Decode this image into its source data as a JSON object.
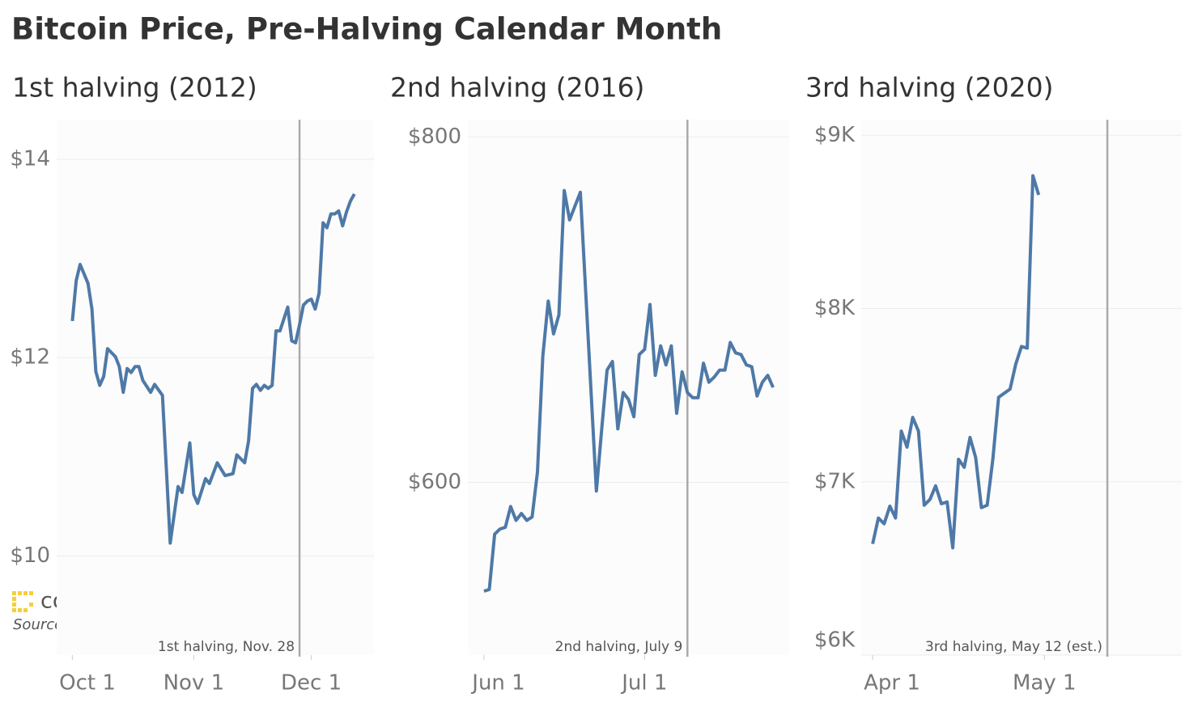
{
  "title": "Bitcoin Price, Pre-Halving Calendar Month",
  "logo": "coindesk",
  "source": "Source: Coin Metrics",
  "chart_data": [
    {
      "type": "line",
      "title": "1st halving (2012)",
      "color": "#4e79a7",
      "grid": true,
      "x": [
        "Oct 1",
        "Oct 2",
        "Oct 3",
        "Oct 5",
        "Oct 6",
        "Oct 7",
        "Oct 8",
        "Oct 9",
        "Oct 10",
        "Oct 12",
        "Oct 13",
        "Oct 14",
        "Oct 15",
        "Oct 16",
        "Oct 17",
        "Oct 18",
        "Oct 19",
        "Oct 21",
        "Oct 22",
        "Oct 24",
        "Oct 25",
        "Oct 26",
        "Oct 28",
        "Oct 29",
        "Oct 31",
        "Nov 1",
        "Nov 2",
        "Nov 4",
        "Nov 5",
        "Nov 7",
        "Nov 9",
        "Nov 11",
        "Nov 12",
        "Nov 14",
        "Nov 15",
        "Nov 16",
        "Nov 17",
        "Nov 18",
        "Nov 19",
        "Nov 20",
        "Nov 21",
        "Nov 22",
        "Nov 23",
        "Nov 25",
        "Nov 26",
        "Nov 27",
        "Nov 28",
        "Nov 29",
        "Nov 30",
        "Dec 1",
        "Dec 2",
        "Dec 3",
        "Dec 4",
        "Dec 5",
        "Dec 6",
        "Dec 7",
        "Dec 8",
        "Dec 9",
        "Dec 10",
        "Dec 11",
        "Dec 12"
      ],
      "values": [
        12.37,
        12.78,
        12.94,
        12.75,
        12.49,
        11.86,
        11.72,
        11.81,
        12.09,
        12.01,
        11.91,
        11.65,
        11.89,
        11.85,
        11.91,
        11.91,
        11.77,
        11.65,
        11.73,
        11.62,
        10.88,
        10.13,
        10.7,
        10.64,
        11.14,
        10.62,
        10.53,
        10.78,
        10.73,
        10.94,
        10.81,
        10.83,
        11.02,
        10.94,
        11.16,
        11.69,
        11.73,
        11.67,
        11.72,
        11.69,
        11.72,
        12.27,
        12.27,
        12.51,
        12.17,
        12.15,
        12.33,
        12.53,
        12.57,
        12.59,
        12.49,
        12.65,
        13.36,
        13.31,
        13.45,
        13.45,
        13.48,
        13.33,
        13.47,
        13.58,
        13.65
      ],
      "xlim": [
        "Sep 27",
        "Dec 17"
      ],
      "xticks": [
        "Oct 1",
        "Nov 1",
        "Dec 1"
      ],
      "ylim": [
        9,
        14.4
      ],
      "yticks": [
        {
          "value": 10,
          "label": "$10"
        },
        {
          "value": 12,
          "label": "$12"
        },
        {
          "value": 14,
          "label": "$14"
        }
      ],
      "annotation": {
        "x": "Nov 28",
        "label": "1st halving, Nov. 28"
      }
    },
    {
      "type": "line",
      "title": "2nd halving (2016)",
      "color": "#4e79a7",
      "grid": true,
      "x": [
        "Jun 1",
        "Jun 2",
        "Jun 3",
        "Jun 4",
        "Jun 5",
        "Jun 6",
        "Jun 7",
        "Jun 8",
        "Jun 9",
        "Jun 10",
        "Jun 11",
        "Jun 12",
        "Jun 13",
        "Jun 14",
        "Jun 15",
        "Jun 16",
        "Jun 17",
        "Jun 18",
        "Jun 19",
        "Jun 22",
        "Jun 23",
        "Jun 24",
        "Jun 25",
        "Jun 26",
        "Jun 27",
        "Jun 28",
        "Jun 29",
        "Jun 30",
        "Jul 1",
        "Jul 2",
        "Jul 3",
        "Jul 4",
        "Jul 5",
        "Jul 6",
        "Jul 7",
        "Jul 8",
        "Jul 9",
        "Jul 10",
        "Jul 11",
        "Jul 12",
        "Jul 13",
        "Jul 14",
        "Jul 15",
        "Jul 16",
        "Jul 17",
        "Jul 18",
        "Jul 19",
        "Jul 20",
        "Jul 21",
        "Jul 22",
        "Jul 23",
        "Jul 24",
        "Jul 25"
      ],
      "values": [
        537,
        538,
        570,
        573,
        574,
        586,
        578,
        582,
        578,
        580,
        606,
        673,
        705,
        686,
        697,
        769,
        752,
        760,
        768,
        595,
        631,
        665,
        670,
        631,
        652,
        648,
        638,
        674,
        677,
        703,
        662,
        679,
        668,
        679,
        640,
        664,
        652,
        649,
        649,
        669,
        658,
        661,
        665,
        665,
        681,
        675,
        674,
        668,
        667,
        650,
        658,
        662,
        655
      ],
      "xlim": [
        "May 29",
        "Jul 28"
      ],
      "xticks": [
        "Jun 1",
        "Jul 1"
      ],
      "ylim": [
        500,
        810
      ],
      "yticks": [
        {
          "value": 600,
          "label": "$600"
        },
        {
          "value": 800,
          "label": "$800"
        }
      ],
      "annotation": {
        "x": "Jul 9",
        "label": "2nd halving, July 9"
      }
    },
    {
      "type": "line",
      "title": "3rd halving (2020)",
      "color": "#4e79a7",
      "grid": true,
      "x": [
        "Apr 1",
        "Apr 2",
        "Apr 3",
        "Apr 4",
        "Apr 5",
        "Apr 6",
        "Apr 7",
        "Apr 8",
        "Apr 9",
        "Apr 10",
        "Apr 11",
        "Apr 12",
        "Apr 13",
        "Apr 14",
        "Apr 15",
        "Apr 16",
        "Apr 17",
        "Apr 18",
        "Apr 19",
        "Apr 20",
        "Apr 21",
        "Apr 22",
        "Apr 23",
        "Apr 24",
        "Apr 25",
        "Apr 26",
        "Apr 27",
        "Apr 28",
        "Apr 29",
        "Apr 30"
      ],
      "values": [
        6642,
        6791,
        6758,
        6860,
        6791,
        7293,
        7200,
        7372,
        7293,
        6865,
        6898,
        6977,
        6874,
        6884,
        6619,
        7130,
        7084,
        7256,
        7140,
        6851,
        6865,
        7130,
        7488,
        7512,
        7535,
        7679,
        7781,
        7772,
        8767,
        8656
      ],
      "xlim": [
        "Mar 30",
        "May 25"
      ],
      "xticks": [
        "Apr 1",
        "May 1"
      ],
      "ylim": [
        6000,
        9090
      ],
      "yticks": [
        {
          "value": 6000,
          "label": "$6K"
        },
        {
          "value": 7000,
          "label": "$7K"
        },
        {
          "value": 8000,
          "label": "$8K"
        },
        {
          "value": 9000,
          "label": "$9K"
        }
      ],
      "annotation": {
        "x": "May 12",
        "label": "3rd halving, May 12 (est.)"
      }
    }
  ]
}
